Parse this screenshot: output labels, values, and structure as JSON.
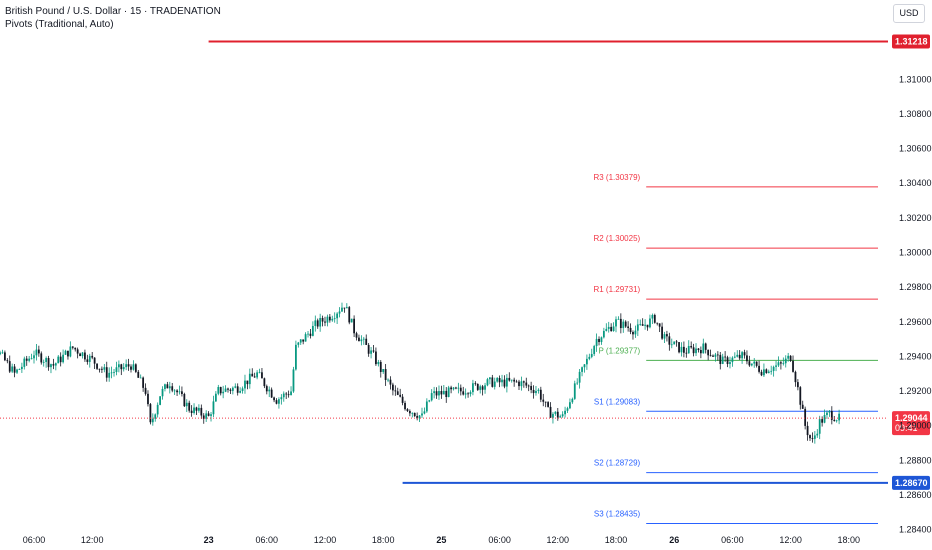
{
  "header": {
    "title": "British Pound / U.S. Dollar · 15 · TRADENATION",
    "indicator": "Pivots (Traditional, Auto)",
    "currency_button": "USD"
  },
  "colors": {
    "up": "#089981",
    "down": "#131722",
    "resistance": "#f23645",
    "pivot": "#4caf50",
    "support": "#2962ff",
    "red_level": "#e0202e",
    "blue_level": "#1e56d6",
    "price_dotted": "#f23645"
  },
  "chart_data": {
    "type": "candlestick",
    "title": "British Pound / U.S. Dollar · 15 · TRADENATION",
    "ylim": [
      1.2834,
      1.314
    ],
    "y_ticks": [
      "1.31000",
      "1.30800",
      "1.30600",
      "1.30400",
      "1.30200",
      "1.30000",
      "1.29800",
      "1.29600",
      "1.29400",
      "1.29200",
      "1.29000",
      "1.28800",
      "1.28600",
      "1.28400"
    ],
    "x_ticks": [
      "06:00",
      "12:00",
      "23",
      "06:00",
      "12:00",
      "18:00",
      "25",
      "06:00",
      "12:00",
      "18:00",
      "26",
      "06:00",
      "12:00",
      "18:00"
    ],
    "x_tick_hours": [
      6,
      12,
      24,
      30,
      36,
      42,
      48,
      54,
      60,
      66,
      72,
      78,
      84,
      90
    ],
    "bold_ticks": [
      "23",
      "25",
      "26"
    ],
    "pivots": [
      {
        "name": "R3",
        "label": "R3 (1.30379)",
        "value": 1.30379,
        "kind": "resistance"
      },
      {
        "name": "R2",
        "label": "R2 (1.30025)",
        "value": 1.30025,
        "kind": "resistance"
      },
      {
        "name": "R1",
        "label": "R1 (1.29731)",
        "value": 1.29731,
        "kind": "resistance"
      },
      {
        "name": "P",
        "label": "P (1.29377)",
        "value": 1.29377,
        "kind": "pivot"
      },
      {
        "name": "S1",
        "label": "S1 (1.29083)",
        "value": 1.29083,
        "kind": "support"
      },
      {
        "name": "S2",
        "label": "S2 (1.28729)",
        "value": 1.28729,
        "kind": "support"
      },
      {
        "name": "S3",
        "label": "S3 (1.28435)",
        "value": 1.28435,
        "kind": "support"
      }
    ],
    "pivot_start_hour": 72,
    "horizontal_levels": [
      {
        "value": 1.31218,
        "label": "1.31218",
        "kind": "red_level",
        "start_hour": 24
      },
      {
        "value": 1.2867,
        "label": "1.28670",
        "kind": "blue_level",
        "start_hour": 44
      }
    ],
    "current_price": {
      "value": 1.29044,
      "label": "1.29044",
      "countdown": "09:41"
    },
    "candles_keypoints": [
      [
        0,
        1.2962
      ],
      [
        2,
        1.2945
      ],
      [
        4,
        1.293
      ],
      [
        6,
        1.2942
      ],
      [
        8,
        1.2935
      ],
      [
        10,
        1.2945
      ],
      [
        12,
        1.2938
      ],
      [
        13.5,
        1.293
      ],
      [
        16,
        1.2935
      ],
      [
        17.5,
        1.292
      ],
      [
        18,
        1.29
      ],
      [
        19,
        1.2918
      ],
      [
        20,
        1.2925
      ],
      [
        22,
        1.291
      ],
      [
        24,
        1.2905
      ],
      [
        25,
        1.292
      ],
      [
        27,
        1.2922
      ],
      [
        29,
        1.293
      ],
      [
        31,
        1.2915
      ],
      [
        32.5,
        1.292
      ],
      [
        33,
        1.2945
      ],
      [
        35,
        1.2958
      ],
      [
        37,
        1.2965
      ],
      [
        38,
        1.297
      ],
      [
        39,
        1.2955
      ],
      [
        41,
        1.294
      ],
      [
        43,
        1.292
      ],
      [
        44.5,
        1.291
      ],
      [
        46,
        1.2905
      ],
      [
        47,
        1.2918
      ],
      [
        50,
        1.292
      ],
      [
        53,
        1.2925
      ],
      [
        56,
        1.2925
      ],
      [
        58,
        1.292
      ],
      [
        59,
        1.2908
      ],
      [
        60.5,
        1.2905
      ],
      [
        62,
        1.2925
      ],
      [
        64,
        1.295
      ],
      [
        66,
        1.296
      ],
      [
        68,
        1.2955
      ],
      [
        70,
        1.2962
      ],
      [
        71,
        1.295
      ],
      [
        73,
        1.2943
      ],
      [
        75,
        1.2945
      ],
      [
        77,
        1.2937
      ],
      [
        79,
        1.294
      ],
      [
        81,
        1.2932
      ],
      [
        83,
        1.2935
      ],
      [
        84,
        1.294
      ],
      [
        84.8,
        1.292
      ],
      [
        85.5,
        1.29
      ],
      [
        86.2,
        1.289
      ],
      [
        87,
        1.2902
      ],
      [
        88,
        1.2907
      ],
      [
        89,
        1.2904
      ]
    ]
  }
}
